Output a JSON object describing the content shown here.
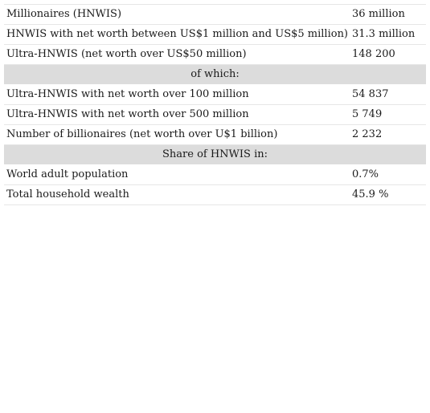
{
  "table": {
    "rows": [
      {
        "label": "Millionaires (HNWIS)",
        "value": "36 million"
      },
      {
        "label": "HNWIS with net worth between US$1 million and US$5 million)",
        "value": "31.3 million"
      },
      {
        "label": "Ultra-HNWIS (net worth over US$50 million)",
        "value": "148 200"
      }
    ],
    "section1": "of which:",
    "rows2": [
      {
        "label": "Ultra-HNWIS with net worth over 100 million",
        "value": "54 837"
      },
      {
        "label": "Ultra-HNWIS with net worth over 500 million",
        "value": "5 749"
      },
      {
        "label": "Number of billionaires (net worth over U$1 billion)",
        "value": "2 232"
      }
    ],
    "section2": "Share of HNWIS in:",
    "rows3": [
      {
        "label": "World adult population",
        "value": "0.7%"
      },
      {
        "label": "Total household wealth",
        "value": "45.9 %"
      }
    ]
  }
}
